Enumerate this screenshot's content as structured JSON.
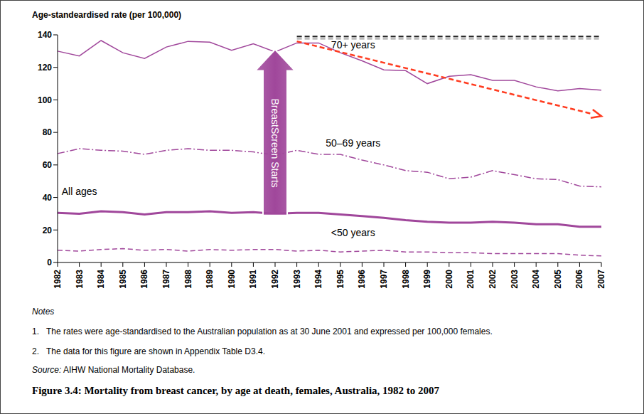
{
  "chart_data": {
    "type": "line",
    "title": "Figure 3.4: Mortality from breast cancer, by age at death, females, Australia, 1982 to 2007",
    "y_label": "Age-standeardised rate (per 100,000)",
    "categories": [
      "1982",
      "1983",
      "1984",
      "1985",
      "1986",
      "1987",
      "1988",
      "1989",
      "1990",
      "1991",
      "1992",
      "1993",
      "1994",
      "1995",
      "1996",
      "1997",
      "1998",
      "1999",
      "2000",
      "2001",
      "2002",
      "2003",
      "2004",
      "2005",
      "2006",
      "2007"
    ],
    "series": [
      {
        "name": "70+  years",
        "color": "#a0479b",
        "line_style": "solid",
        "values": [
          130,
          127,
          136.5,
          129,
          125.5,
          132.5,
          136,
          135.5,
          130.5,
          134.5,
          129.5,
          135,
          135,
          129,
          124,
          118.5,
          118,
          110,
          114.5,
          115.5,
          112,
          112,
          108,
          105.5,
          107,
          106
        ]
      },
      {
        "name": "50–69 years",
        "color": "#a0479b",
        "line_style": "dashdot",
        "values": [
          67,
          70,
          69,
          68.5,
          66.5,
          69,
          70,
          69,
          69,
          68,
          66,
          69,
          66.5,
          66.5,
          63,
          60,
          56.5,
          55.5,
          51.5,
          52.5,
          56.5,
          54,
          51.5,
          51,
          47,
          46.5
        ]
      },
      {
        "name": "All ages",
        "color": "#a0479b",
        "line_style": "solid",
        "values": [
          30.5,
          30,
          31.5,
          31,
          29.5,
          31,
          31,
          31.5,
          30.5,
          31,
          30,
          30.5,
          30.5,
          29.5,
          28.5,
          27.5,
          26,
          25,
          24.5,
          24.5,
          25,
          24.5,
          23.5,
          23.5,
          22,
          22
        ]
      },
      {
        "name": "<50 years",
        "color": "#a0479b",
        "line_style": "dashed",
        "values": [
          7.5,
          7,
          8,
          8.5,
          7.5,
          8,
          7,
          8,
          7.5,
          8,
          8,
          7,
          7.5,
          6.5,
          7,
          7.5,
          6.5,
          6.5,
          6,
          6,
          5.5,
          5.5,
          5.5,
          5.5,
          4.5,
          4
        ]
      }
    ],
    "ylim": [
      0,
      140
    ],
    "yticks": [
      0,
      20,
      40,
      60,
      80,
      100,
      120,
      140
    ],
    "grid": false,
    "annotations": [
      {
        "type": "arrow",
        "text": "BreastScreen Starts",
        "x": [
          "1992",
          "1992"
        ],
        "y": [
          29,
          131
        ],
        "color": "#a0479b"
      },
      {
        "type": "arrow",
        "x": [
          "1993",
          "2007"
        ],
        "y": [
          136,
          90
        ],
        "color": "#ff3b1f",
        "line_style": "dashed"
      },
      {
        "type": "line",
        "x": [
          "1993",
          "2007"
        ],
        "y": [
          139,
          139
        ],
        "color": "#222222",
        "line_style": "dashed"
      }
    ],
    "notes_title": "Notes",
    "notes": [
      {
        "number": "1.",
        "text": "The rates were age-standardised to the Australian population as at 30 June 2001 and expressed per 100,000 females."
      },
      {
        "number": "2.",
        "text": "The data for this figure are shown in Appendix Table D3.4."
      }
    ],
    "source_label": "Source:",
    "source": "AIHW National Mortality Database."
  }
}
